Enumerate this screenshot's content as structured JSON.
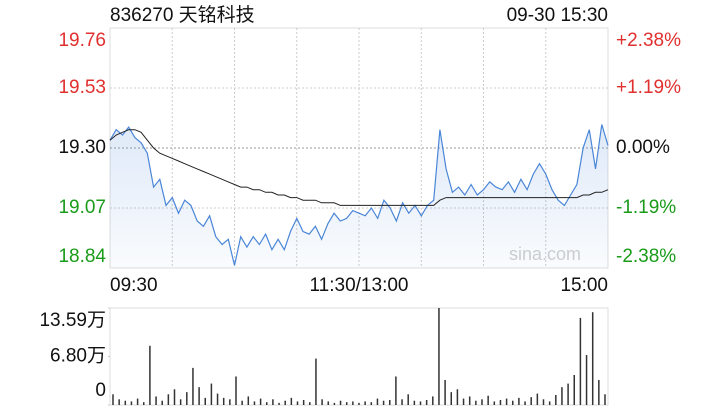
{
  "chart_data": [
    {
      "type": "line",
      "title": "836270 天铭科技",
      "timestamp": "09-30 15:30",
      "watermark": "sina.com",
      "categories": [
        "09:30",
        null,
        null,
        null,
        null,
        null,
        null,
        null,
        null,
        null,
        null,
        null,
        null,
        null,
        null,
        null,
        null,
        null,
        null,
        null,
        null,
        null,
        null,
        null,
        null,
        null,
        null,
        null,
        null,
        null,
        null,
        null,
        null,
        null,
        null,
        null,
        null,
        null,
        null,
        null,
        "11:30/13:00",
        null,
        null,
        null,
        null,
        null,
        null,
        null,
        null,
        null,
        null,
        null,
        null,
        null,
        null,
        null,
        null,
        null,
        null,
        null,
        null,
        null,
        null,
        null,
        null,
        null,
        null,
        null,
        null,
        null,
        null,
        null,
        null,
        null,
        null,
        null,
        null,
        null,
        null,
        null,
        "15:00"
      ],
      "series": [
        {
          "color": "#4a86d8",
          "values": [
            19.33,
            19.37,
            19.35,
            19.38,
            19.34,
            19.32,
            19.28,
            19.15,
            19.18,
            19.08,
            19.11,
            19.05,
            19.1,
            19.08,
            19.02,
            19.0,
            19.04,
            18.96,
            18.93,
            18.95,
            18.85,
            18.96,
            18.92,
            18.96,
            18.93,
            18.97,
            18.91,
            18.95,
            18.91,
            18.98,
            19.03,
            18.98,
            18.97,
            19.0,
            18.95,
            19.01,
            19.05,
            19.02,
            19.03,
            19.06,
            19.05,
            19.04,
            19.07,
            19.03,
            19.1,
            19.07,
            19.02,
            19.09,
            19.05,
            19.08,
            19.04,
            19.08,
            19.1,
            19.37,
            19.22,
            19.13,
            19.15,
            19.12,
            19.16,
            19.12,
            19.14,
            19.17,
            19.15,
            19.14,
            19.17,
            19.13,
            19.18,
            19.14,
            19.2,
            19.24,
            19.2,
            19.14,
            19.1,
            19.08,
            19.12,
            19.16,
            19.3,
            19.37,
            19.22,
            19.39,
            19.31
          ]
        },
        {
          "color": "#222222",
          "values": [
            19.33,
            19.35,
            19.36,
            19.37,
            19.37,
            19.36,
            19.33,
            19.3,
            19.28,
            19.27,
            19.26,
            19.25,
            19.24,
            19.23,
            19.22,
            19.21,
            19.2,
            19.19,
            19.18,
            19.17,
            19.16,
            19.15,
            19.15,
            19.14,
            19.14,
            19.13,
            19.13,
            19.12,
            19.12,
            19.11,
            19.11,
            19.1,
            19.1,
            19.1,
            19.09,
            19.09,
            19.09,
            19.08,
            19.08,
            19.08,
            19.08,
            19.08,
            19.08,
            19.08,
            19.08,
            19.08,
            19.08,
            19.08,
            19.08,
            19.08,
            19.08,
            19.08,
            19.08,
            19.1,
            19.11,
            19.11,
            19.11,
            19.11,
            19.11,
            19.11,
            19.11,
            19.11,
            19.11,
            19.11,
            19.11,
            19.11,
            19.11,
            19.11,
            19.11,
            19.11,
            19.11,
            19.11,
            19.11,
            19.11,
            19.11,
            19.11,
            19.12,
            19.12,
            19.13,
            19.13,
            19.14
          ]
        }
      ],
      "ylim": [
        18.84,
        19.76
      ],
      "yticks": [
        19.76,
        19.53,
        {
          "value": 19.3,
          "label": "19.30"
        },
        19.07,
        18.84
      ],
      "y2lim": [
        -2.38,
        2.38
      ],
      "y2ticks": [
        {
          "value": 2.38,
          "label": "+2.38%"
        },
        {
          "value": 1.19,
          "label": "+1.19%"
        },
        {
          "value": 0,
          "label": "0.00%"
        },
        {
          "value": -1.19,
          "label": "-1.19%"
        },
        {
          "value": -2.38,
          "label": "-2.38%"
        }
      ],
      "up_color": "#e0302f",
      "down_color": "#1a9b1a",
      "flat_color": "#111111",
      "grid": true
    },
    {
      "type": "bar",
      "color": "#333333",
      "values": [
        1.5,
        0.8,
        0.6,
        0.5,
        0.9,
        0.4,
        8.3,
        1.2,
        0.6,
        1.5,
        2.2,
        0.8,
        1.8,
        5.2,
        2.5,
        1.0,
        3.0,
        1.6,
        1.0,
        0.8,
        4.0,
        0.6,
        1.2,
        0.5,
        0.9,
        0.4,
        0.8,
        0.3,
        0.6,
        1.0,
        0.5,
        0.7,
        0.4,
        6.5,
        0.8,
        0.5,
        0.3,
        0.6,
        0.4,
        0.5,
        0.3,
        0.5,
        0.4,
        0.9,
        0.6,
        0.7,
        4.0,
        0.8,
        1.5,
        0.6,
        0.5,
        0.7,
        1.2,
        13.59,
        3.5,
        1.8,
        2.2,
        0.9,
        1.2,
        0.6,
        0.8,
        1.3,
        0.5,
        0.7,
        0.9,
        0.6,
        1.0,
        0.5,
        1.1,
        1.6,
        0.8,
        0.5,
        1.4,
        2.5,
        3.0,
        4.2,
        12.2,
        7.0,
        13.0,
        3.5,
        1.5
      ],
      "ylim": [
        0,
        13.59
      ],
      "yticks": [
        {
          "value": 13.59,
          "label": "13.59万"
        },
        {
          "value": 6.8,
          "label": "6.80万"
        },
        0
      ]
    }
  ]
}
